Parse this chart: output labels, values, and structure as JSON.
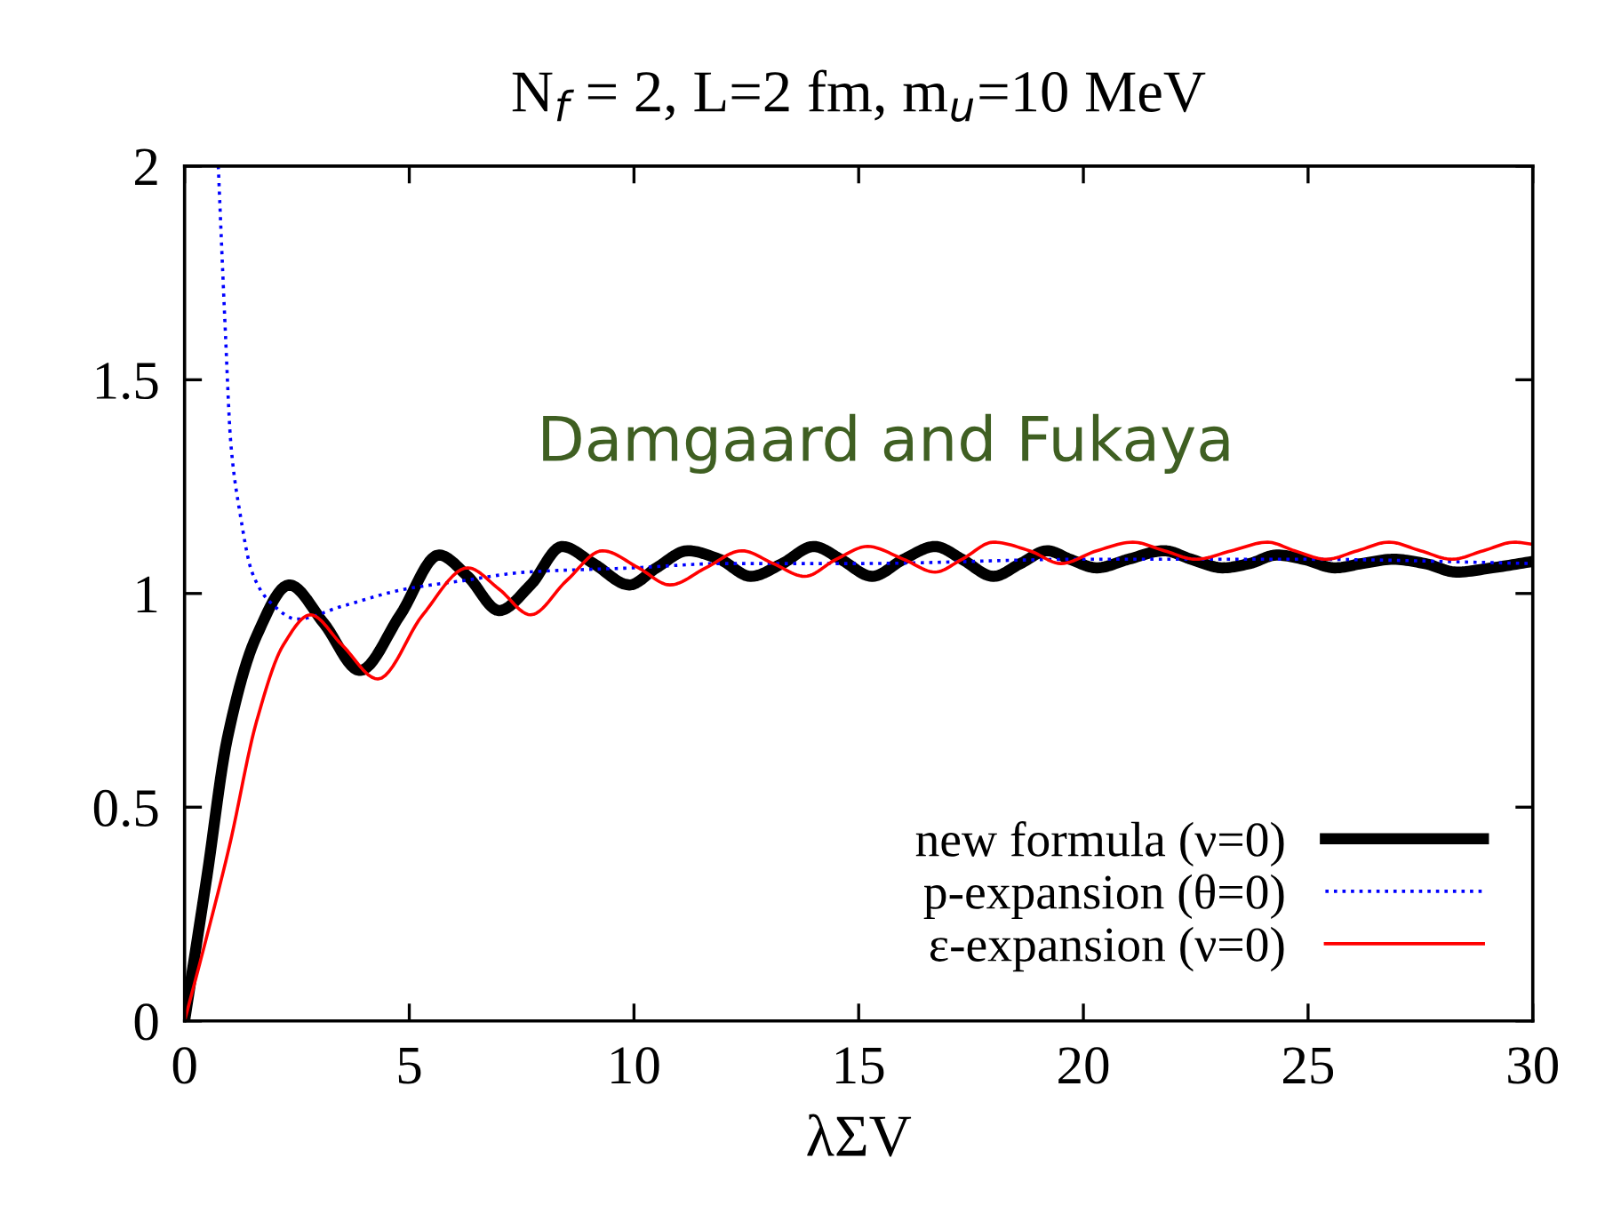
{
  "chart_data": {
    "type": "line",
    "title": "N$_{f}$ = 2, L=2 fm, m$_{u}$=10 MeV",
    "xlabel": "λΣV",
    "annotations": [
      "Damgaard and Fukaya"
    ],
    "xlim": [
      0,
      30
    ],
    "ylim": [
      0,
      2
    ],
    "xticks": [
      0,
      5,
      10,
      15,
      20,
      25,
      30
    ],
    "yticks": [
      0,
      0.5,
      1,
      1.5,
      2
    ],
    "grid": false,
    "legend": "bottom right",
    "series": [
      {
        "name": "new formula (ν=0)",
        "color": "#000000",
        "line_style": "solid",
        "x": [
          0,
          0.5,
          0.95,
          1.6,
          2.33,
          3.1,
          3.9,
          4.8,
          5.66,
          6.3,
          7.0,
          7.7,
          8.4,
          9.1,
          9.9,
          10.5,
          11.2,
          11.9,
          12.6,
          13.3,
          14.0,
          14.6,
          15.3,
          16.0,
          16.7,
          17.3,
          18.0,
          18.6,
          19.2,
          19.7,
          20.3,
          21.0,
          21.8,
          22.4,
          23.1,
          23.7,
          24.3,
          24.9,
          25.6,
          26.2,
          26.9,
          27.6,
          28.3,
          29.1,
          30
        ],
        "values": [
          0,
          0.34,
          0.66,
          0.9,
          1.02,
          0.93,
          0.82,
          0.95,
          1.09,
          1.04,
          0.96,
          1.02,
          1.11,
          1.07,
          1.02,
          1.06,
          1.1,
          1.08,
          1.04,
          1.07,
          1.11,
          1.08,
          1.04,
          1.08,
          1.11,
          1.08,
          1.04,
          1.07,
          1.1,
          1.08,
          1.06,
          1.08,
          1.1,
          1.08,
          1.06,
          1.07,
          1.09,
          1.08,
          1.06,
          1.07,
          1.08,
          1.07,
          1.05,
          1.06,
          1.075
        ]
      },
      {
        "name": "p-expansion (θ=0)",
        "color": "#0000ff",
        "line_style": "dotted",
        "x": [
          0.75,
          0.9,
          1.03,
          1.23,
          1.5,
          1.9,
          2.5,
          3.5,
          4.9,
          6.2,
          7.6,
          10,
          12,
          15,
          20,
          25,
          30
        ],
        "values": [
          2.0,
          1.63,
          1.35,
          1.19,
          1.05,
          0.98,
          0.94,
          0.97,
          1.01,
          1.03,
          1.05,
          1.06,
          1.07,
          1.07,
          1.08,
          1.08,
          1.07
        ]
      },
      {
        "name": "ε-expansion (ν=0)",
        "color": "#ff0000",
        "line_style": "solid",
        "x": [
          0,
          0.5,
          1.0,
          1.6,
          2.2,
          2.8,
          3.5,
          4.3,
          5.3,
          6.3,
          7.0,
          7.7,
          8.5,
          9.3,
          10.1,
          10.8,
          11.6,
          12.4,
          13.1,
          13.8,
          14.5,
          15.2,
          16.0,
          16.7,
          17.3,
          18.0,
          18.8,
          19.5,
          20.3,
          21.1,
          21.8,
          22.5,
          23.3,
          24.1,
          24.7,
          25.4,
          26.1,
          26.8,
          27.5,
          28.2,
          28.9,
          29.6,
          30
        ],
        "values": [
          0,
          0.2,
          0.41,
          0.7,
          0.88,
          0.95,
          0.88,
          0.8,
          0.95,
          1.06,
          1.01,
          0.95,
          1.03,
          1.1,
          1.06,
          1.02,
          1.06,
          1.1,
          1.07,
          1.04,
          1.08,
          1.11,
          1.08,
          1.05,
          1.08,
          1.12,
          1.1,
          1.07,
          1.1,
          1.12,
          1.1,
          1.08,
          1.1,
          1.12,
          1.1,
          1.08,
          1.1,
          1.12,
          1.1,
          1.08,
          1.1,
          1.12,
          1.115
        ]
      }
    ]
  }
}
